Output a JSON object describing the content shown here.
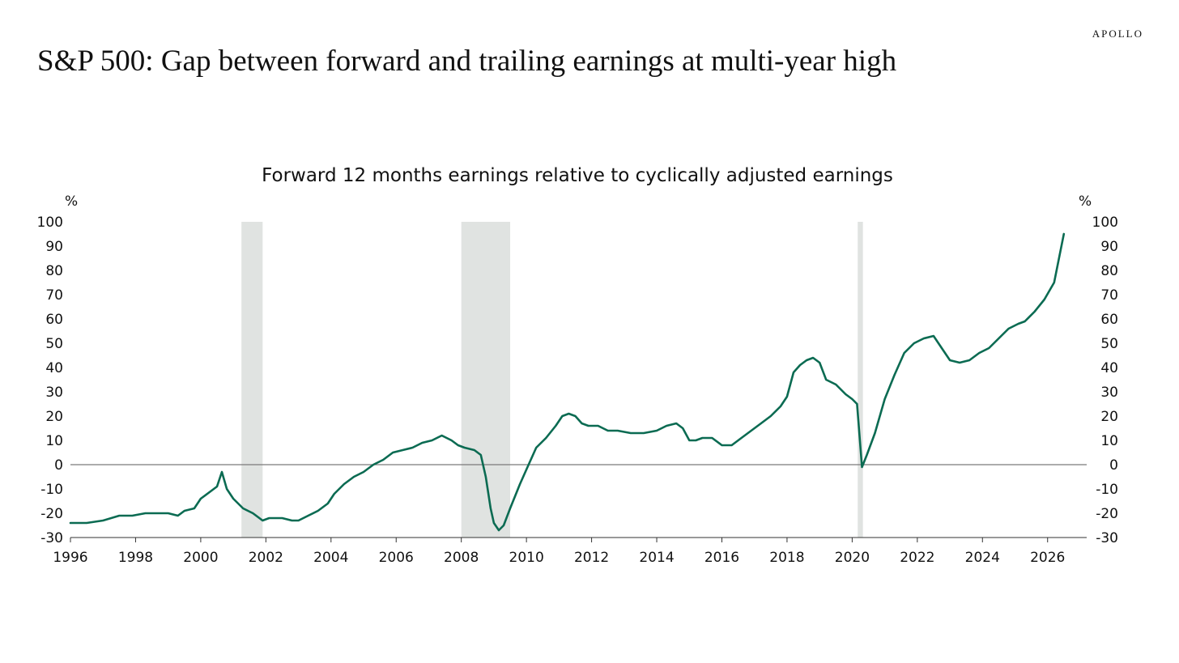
{
  "brand": "APOLLO",
  "headline": "S&P 500: Gap between forward and trailing earnings at multi-year high",
  "colors": {
    "line": "#0b6b52",
    "recession": "#e0e3e1",
    "zero_line": "#7a7a7a",
    "axis": "#333333"
  },
  "chart_data": {
    "type": "line",
    "title": "Forward 12 months earnings relative to cyclically adjusted earnings",
    "ylabel_left": "%",
    "ylabel_right": "%",
    "xlabel": "",
    "xlim": [
      1996,
      2027.2
    ],
    "ylim": [
      -30,
      100
    ],
    "x_ticks": [
      1996,
      1998,
      2000,
      2002,
      2004,
      2006,
      2008,
      2010,
      2012,
      2014,
      2016,
      2018,
      2020,
      2022,
      2024,
      2026
    ],
    "y_ticks": [
      -30,
      -20,
      -10,
      0,
      10,
      20,
      30,
      40,
      50,
      60,
      70,
      80,
      90,
      100
    ],
    "grid": false,
    "legend": "none",
    "recessions": [
      {
        "start": 2001.25,
        "end": 2001.9
      },
      {
        "start": 2008.0,
        "end": 2009.5
      },
      {
        "start": 2020.17,
        "end": 2020.33
      }
    ],
    "series": [
      {
        "x": [
          1996.0,
          1996.5,
          1997.0,
          1997.5,
          1997.9,
          1998.3,
          1998.6,
          1999.0,
          1999.3,
          1999.5,
          1999.8,
          2000.0,
          2000.3,
          2000.5,
          2000.65,
          2000.8,
          2001.0,
          2001.3,
          2001.6,
          2001.9,
          2002.1,
          2002.5,
          2002.8,
          2003.0,
          2003.3,
          2003.6,
          2003.9,
          2004.1,
          2004.4,
          2004.7,
          2005.0,
          2005.3,
          2005.6,
          2005.9,
          2006.2,
          2006.5,
          2006.8,
          2007.1,
          2007.4,
          2007.7,
          2007.9,
          2008.1,
          2008.4,
          2008.6,
          2008.75,
          2008.9,
          2009.0,
          2009.15,
          2009.3,
          2009.5,
          2009.8,
          2010.0,
          2010.3,
          2010.6,
          2010.9,
          2011.1,
          2011.3,
          2011.5,
          2011.7,
          2011.9,
          2012.2,
          2012.5,
          2012.8,
          2013.2,
          2013.6,
          2014.0,
          2014.3,
          2014.6,
          2014.8,
          2015.0,
          2015.2,
          2015.4,
          2015.7,
          2016.0,
          2016.3,
          2016.6,
          2016.9,
          2017.2,
          2017.5,
          2017.8,
          2018.0,
          2018.2,
          2018.4,
          2018.6,
          2018.8,
          2019.0,
          2019.2,
          2019.5,
          2019.8,
          2020.0,
          2020.15,
          2020.3,
          2020.45,
          2020.7,
          2021.0,
          2021.3,
          2021.6,
          2021.9,
          2022.2,
          2022.5,
          2022.8,
          2023.0,
          2023.3,
          2023.6,
          2023.9,
          2024.2,
          2024.5,
          2024.8,
          2025.1,
          2025.3,
          2025.6,
          2025.9,
          2026.2,
          2026.5
        ],
        "values": [
          -24,
          -24,
          -23,
          -21,
          -21,
          -20,
          -20,
          -20,
          -21,
          -19,
          -18,
          -14,
          -11,
          -9,
          -3,
          -10,
          -14,
          -18,
          -20,
          -23,
          -22,
          -22,
          -23,
          -23,
          -21,
          -19,
          -16,
          -12,
          -8,
          -5,
          -3,
          0,
          2,
          5,
          6,
          7,
          9,
          10,
          12,
          10,
          8,
          7,
          6,
          4,
          -5,
          -18,
          -24,
          -27,
          -25,
          -18,
          -8,
          -2,
          7,
          11,
          16,
          20,
          21,
          20,
          17,
          16,
          16,
          14,
          14,
          13,
          13,
          14,
          16,
          17,
          15,
          10,
          10,
          11,
          11,
          8,
          8,
          11,
          14,
          17,
          20,
          24,
          28,
          38,
          41,
          43,
          44,
          42,
          35,
          33,
          29,
          27,
          25,
          -1,
          4,
          13,
          27,
          37,
          46,
          50,
          52,
          53,
          47,
          43,
          42,
          43,
          46,
          48,
          52,
          56,
          58,
          59,
          63,
          68,
          75,
          95
        ]
      }
    ]
  }
}
